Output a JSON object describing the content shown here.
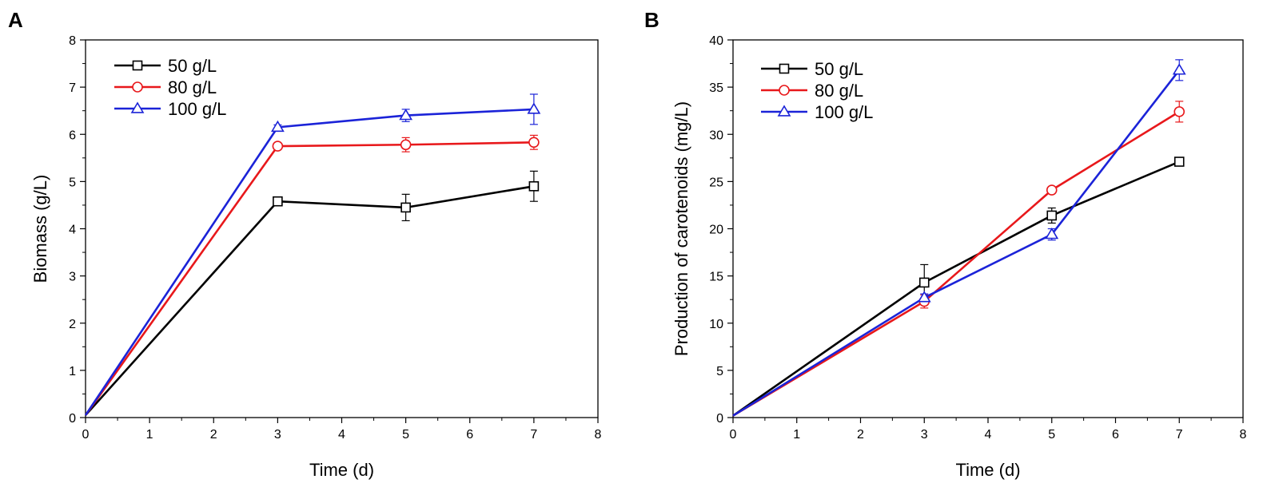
{
  "figure": {
    "panels": [
      "A",
      "B"
    ]
  },
  "chart_data": [
    {
      "panel": "A",
      "type": "line",
      "xlabel": "Time (d)",
      "ylabel": "Biomass (g/L)",
      "xlim": [
        0,
        8
      ],
      "ylim": [
        0,
        8
      ],
      "xticks": [
        0,
        1,
        2,
        3,
        4,
        5,
        6,
        7,
        8
      ],
      "yticks": [
        0,
        1,
        2,
        3,
        4,
        5,
        6,
        7,
        8
      ],
      "grid": false,
      "legend_position": "top-left",
      "series": [
        {
          "name": "50 g/L",
          "color": "#000000",
          "marker": "square",
          "x": [
            0,
            3,
            5,
            7
          ],
          "y": [
            0.05,
            4.58,
            4.45,
            4.9
          ],
          "err": [
            0,
            0.08,
            0.28,
            0.32
          ]
        },
        {
          "name": "80 g/L",
          "color": "#e8181b",
          "marker": "circle",
          "x": [
            0,
            3,
            5,
            7
          ],
          "y": [
            0.05,
            5.75,
            5.78,
            5.83
          ],
          "err": [
            0,
            0.05,
            0.15,
            0.15
          ]
        },
        {
          "name": "100 g/L",
          "color": "#1b23d8",
          "marker": "triangle",
          "x": [
            0,
            3,
            5,
            7
          ],
          "y": [
            0.05,
            6.15,
            6.4,
            6.53
          ],
          "err": [
            0,
            0.05,
            0.13,
            0.32
          ]
        }
      ]
    },
    {
      "panel": "B",
      "type": "line",
      "xlabel": "Time (d)",
      "ylabel": "Production of carotenoids (mg/L)",
      "xlim": [
        0,
        8
      ],
      "ylim": [
        0,
        40
      ],
      "xticks": [
        0,
        1,
        2,
        3,
        4,
        5,
        6,
        7,
        8
      ],
      "yticks": [
        0,
        5,
        10,
        15,
        20,
        25,
        30,
        35,
        40
      ],
      "grid": false,
      "legend_position": "top-left",
      "series": [
        {
          "name": "50 g/L",
          "color": "#000000",
          "marker": "square",
          "x": [
            0,
            3,
            5,
            7
          ],
          "y": [
            0.2,
            14.3,
            21.4,
            27.1
          ],
          "err": [
            0,
            1.9,
            0.8,
            0.3
          ]
        },
        {
          "name": "80 g/L",
          "color": "#e8181b",
          "marker": "circle",
          "x": [
            0,
            3,
            5,
            7
          ],
          "y": [
            0.2,
            12.3,
            24.1,
            32.4
          ],
          "err": [
            0,
            0.7,
            0.3,
            1.1
          ]
        },
        {
          "name": "100 g/L",
          "color": "#1b23d8",
          "marker": "triangle",
          "x": [
            0,
            3,
            5,
            7
          ],
          "y": [
            0.2,
            12.7,
            19.4,
            36.8
          ],
          "err": [
            0,
            0.4,
            0.6,
            1.1
          ]
        }
      ]
    }
  ]
}
